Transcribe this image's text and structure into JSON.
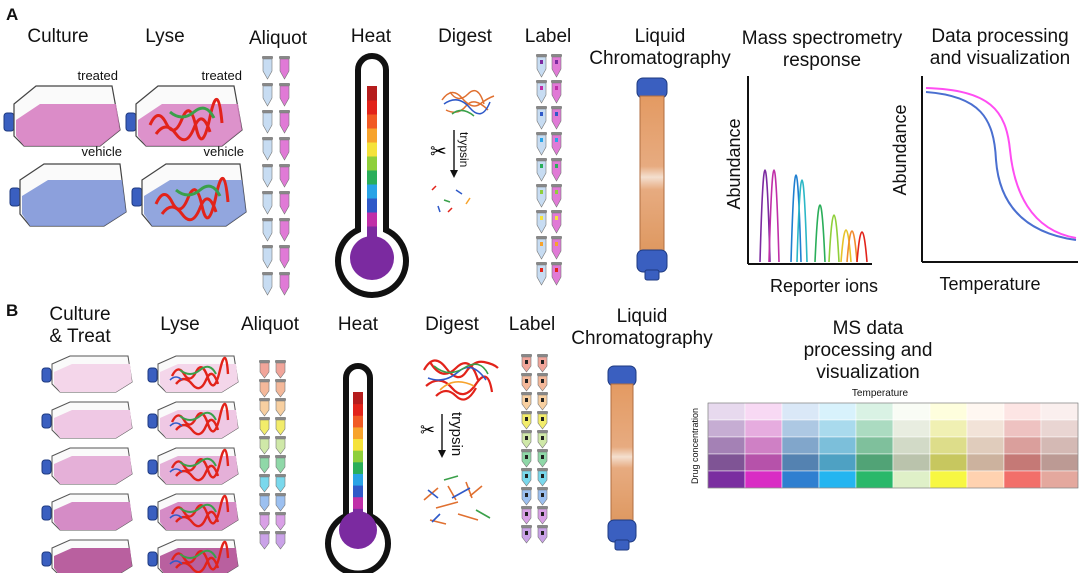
{
  "panel_a": {
    "letter": "A",
    "steps": {
      "culture": "Culture",
      "lyse": "Lyse",
      "aliquot": "Aliquot",
      "heat": "Heat",
      "digest": "Digest",
      "label": "Label",
      "lc_line1": "Liquid",
      "lc_line2": "Chromatography",
      "ms_line1": "Mass spectrometry",
      "ms_line2": "response",
      "dp_line1": "Data processing",
      "dp_line2": "and visualization"
    },
    "treated": "treated",
    "vehicle": "vehicle",
    "trypsin": "trypsin",
    "ms_ylabel": "Abundance",
    "ms_xlabel": "Reporter ions",
    "melt_ylabel": "Abundance",
    "melt_xlabel": "Temperature"
  },
  "panel_b": {
    "letter": "B",
    "steps": {
      "culture_line1": "Culture",
      "culture_line2": "& Treat",
      "lyse": "Lyse",
      "aliquot": "Aliquot",
      "heat": "Heat",
      "digest": "Digest",
      "label": "Label",
      "lc_line1": "Liquid",
      "lc_line2": "Chromatography",
      "ms_line1": "MS data",
      "ms_line2": "processing and",
      "ms_line3": "visualization"
    },
    "trypsin": "trypsin",
    "heatmap_xlabel": "Temperature",
    "heatmap_ylabel": "Drug concentration"
  },
  "colors": {
    "treated_flask": "#d77fc2",
    "vehicle_flask": "#7f96d8",
    "cap": "#3a5fc0",
    "tube_pink": "#e07ad6",
    "tube_blue": "#c7dcf2",
    "column": "#e0a06e",
    "column_cap": "#3a5fc0",
    "treated_curve": "#ff4df2",
    "vehicle_curve": "#4a6fd0",
    "thermo_scale": [
      "#7b2aa0",
      "#c02fa8",
      "#2f59c8",
      "#29a3e6",
      "#2aae5a",
      "#8fcf3a",
      "#f5e23a",
      "#f7a32c",
      "#f15a24",
      "#e2231a",
      "#b51d1d"
    ],
    "reporter_peaks": [
      "#7b2aa0",
      "#c02fa8",
      "#1f7fd0",
      "#2bb7c6",
      "#2aae5a",
      "#8fcf3a",
      "#e6c32a",
      "#f28b2c",
      "#e2231a"
    ]
  },
  "heatmap": {
    "columns": [
      "#7a2ea0",
      "#d92cc4",
      "#2f7fd0",
      "#24b5f0",
      "#2ab86a",
      "#dff0c8",
      "#f7f742",
      "#ffd2b0",
      "#f26f6a",
      "#e4a89e"
    ],
    "row_mix": [
      0.18,
      0.35,
      0.52,
      0.72,
      1.0
    ],
    "row_darken": [
      0,
      0.05,
      0.12,
      0.2,
      0
    ]
  }
}
